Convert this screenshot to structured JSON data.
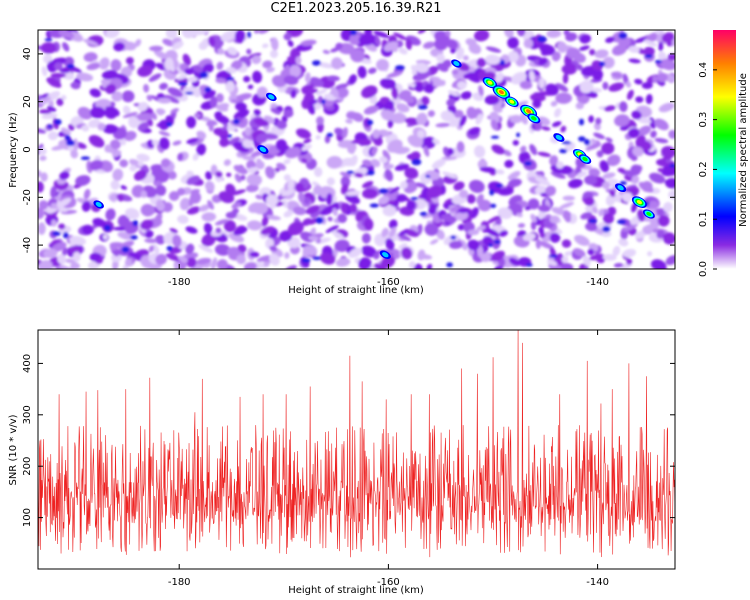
{
  "title": "C2E1.2023.205.16.39.R21",
  "chart_data": [
    {
      "type": "heatmap",
      "xlabel": "Height of straight line (km)",
      "ylabel": "Frequency (Hz)",
      "xlim": [
        -193.5,
        -132.6
      ],
      "ylim": [
        -50,
        50
      ],
      "x_ticks": [
        -180,
        -160,
        -140
      ],
      "y_ticks": [
        -40,
        -20,
        0,
        20,
        40
      ],
      "colorbar": {
        "label": "Normalized spectral amplitude",
        "range": [
          0,
          0.48
        ],
        "ticks": [
          0.0,
          0.1,
          0.2,
          0.3,
          0.4
        ],
        "colors": [
          "#ffffff",
          "#8a2be2",
          "#0000ff",
          "#00ffff",
          "#00ff00",
          "#ffff00",
          "#ff8000",
          "#ff0066"
        ]
      },
      "features": [
        {
          "x": -150.3,
          "y": 28,
          "value": 0.28
        },
        {
          "x": -149.2,
          "y": 24,
          "value": 0.4
        },
        {
          "x": -148.2,
          "y": 20,
          "value": 0.25
        },
        {
          "x": -146.6,
          "y": 16,
          "value": 0.38
        },
        {
          "x": -146.1,
          "y": 13,
          "value": 0.22
        },
        {
          "x": -143.7,
          "y": 5,
          "value": 0.15
        },
        {
          "x": -141.7,
          "y": -2,
          "value": 0.25
        },
        {
          "x": -141.2,
          "y": -4,
          "value": 0.2
        },
        {
          "x": -137.8,
          "y": -16,
          "value": 0.15
        },
        {
          "x": -136.0,
          "y": -22,
          "value": 0.3
        },
        {
          "x": -135.1,
          "y": -27,
          "value": 0.18
        },
        {
          "x": -172.0,
          "y": 0,
          "value": 0.15
        },
        {
          "x": -187.7,
          "y": -23,
          "value": 0.12
        },
        {
          "x": -153.5,
          "y": 36,
          "value": 0.12
        },
        {
          "x": -160.3,
          "y": -44,
          "value": 0.14
        },
        {
          "x": -171.2,
          "y": 22,
          "value": 0.13
        }
      ]
    },
    {
      "type": "line",
      "xlabel": "Height of straight line (km)",
      "ylabel": "SNR (10 * v/v)",
      "xlim": [
        -193.5,
        -132.6
      ],
      "ylim": [
        0,
        465
      ],
      "x_ticks": [
        -180,
        -160,
        -140
      ],
      "y_ticks": [
        100,
        200,
        300,
        400
      ],
      "series": [
        {
          "color": "#ee2222",
          "baseline": 130,
          "typical_range": [
            30,
            280
          ],
          "peaks": [
            {
              "x": -193.3,
              "y": 250
            },
            {
              "x": -191.5,
              "y": 340
            },
            {
              "x": -188.9,
              "y": 345
            },
            {
              "x": -187.8,
              "y": 348
            },
            {
              "x": -185.1,
              "y": 350
            },
            {
              "x": -182.8,
              "y": 372
            },
            {
              "x": -180.5,
              "y": 270
            },
            {
              "x": -178.5,
              "y": 305
            },
            {
              "x": -177.8,
              "y": 370
            },
            {
              "x": -174.2,
              "y": 335
            },
            {
              "x": -172.0,
              "y": 340
            },
            {
              "x": -169.8,
              "y": 340
            },
            {
              "x": -167.5,
              "y": 355
            },
            {
              "x": -163.7,
              "y": 415
            },
            {
              "x": -162.5,
              "y": 365
            },
            {
              "x": -160.2,
              "y": 330
            },
            {
              "x": -157.8,
              "y": 340
            },
            {
              "x": -156.1,
              "y": 340
            },
            {
              "x": -153.0,
              "y": 390
            },
            {
              "x": -151.5,
              "y": 380
            },
            {
              "x": -150.0,
              "y": 412
            },
            {
              "x": -147.6,
              "y": 465
            },
            {
              "x": -147.2,
              "y": 440
            },
            {
              "x": -143.6,
              "y": 340
            },
            {
              "x": -141.0,
              "y": 405
            },
            {
              "x": -139.7,
              "y": 322
            },
            {
              "x": -138.6,
              "y": 350
            },
            {
              "x": -137.0,
              "y": 400
            },
            {
              "x": -135.3,
              "y": 375
            },
            {
              "x": -133.3,
              "y": 275
            }
          ]
        }
      ]
    }
  ]
}
